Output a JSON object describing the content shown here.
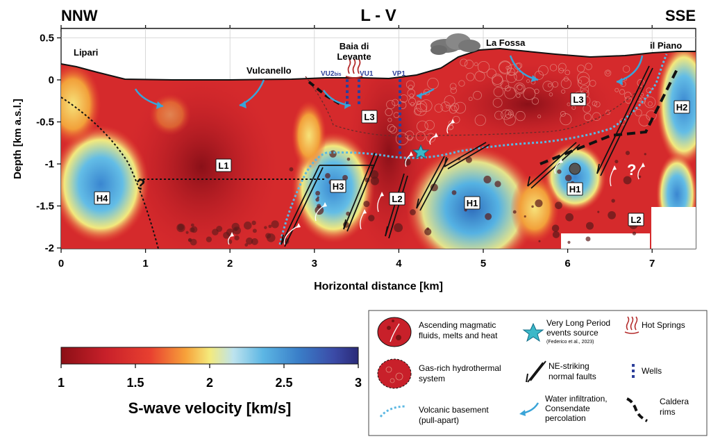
{
  "header": {
    "left_direction": "NNW",
    "profile_name": "L - V",
    "right_direction": "SSE"
  },
  "axes": {
    "ylabel": "Depth [km a.s.l.]",
    "xlabel": "Horizontal distance [km]",
    "xlim": [
      0,
      7.55
    ],
    "ylim": [
      -2,
      0.6
    ],
    "x_ticks": [
      "0",
      "1",
      "2",
      "3",
      "4",
      "5",
      "6",
      "7"
    ],
    "y_ticks": [
      "0.5",
      "0",
      "-0.5",
      "-1",
      "-1.5",
      "-2"
    ]
  },
  "locations": {
    "lipari": "Lipari",
    "vulcanello": "Vulcanello",
    "baia_line1": "Baia di",
    "baia_line2": "Levante",
    "la_fossa": "La Fossa",
    "il_piano": "il Piano"
  },
  "wells": {
    "vu2": "VU2",
    "vu2_sub": "bis",
    "vu1": "VU1",
    "vp1": "VP1"
  },
  "anomalies": {
    "l1": "L1",
    "l2a": "L2",
    "l2b": "L2",
    "l3a": "L3",
    "l3b": "L3",
    "h1a": "H1",
    "h1b": "H1",
    "h2": "H2",
    "h3": "H3",
    "h4": "H4",
    "q1": "?",
    "q2": "?"
  },
  "colorbar": {
    "title": "S-wave velocity [km/s]",
    "ticks": [
      "1",
      "1.5",
      "2",
      "2.5",
      "3"
    ],
    "colors": [
      "#8c0f16",
      "#c8202a",
      "#e84030",
      "#f7a23a",
      "#f4ea7c",
      "#bde3ee",
      "#5cb6e4",
      "#3a7ec8",
      "#3b4aa6",
      "#2a2a78"
    ]
  },
  "legend": {
    "ascending_line1": "Ascending magmatic",
    "ascending_line2": "fluids, melts and heat",
    "vlp_line1": "Very Long Period",
    "vlp_line2": "events source",
    "vlp_ref": "(Federico et al., 2023)",
    "hot_springs": "Hot Springs",
    "gas_line1": "Gas-rich hydrothermal",
    "gas_line2": "system",
    "faults_line1": "NE-striking",
    "faults_line2": "normal faults",
    "wells": "Wells",
    "basement_line1": "Volcanic basement",
    "basement_line2": "(pull-apart)",
    "water_line1": "Water infiltration,",
    "water_line2": "Consendate",
    "water_line3": "percolation",
    "caldera_line1": "Caldera",
    "caldera_line2": "rims"
  }
}
